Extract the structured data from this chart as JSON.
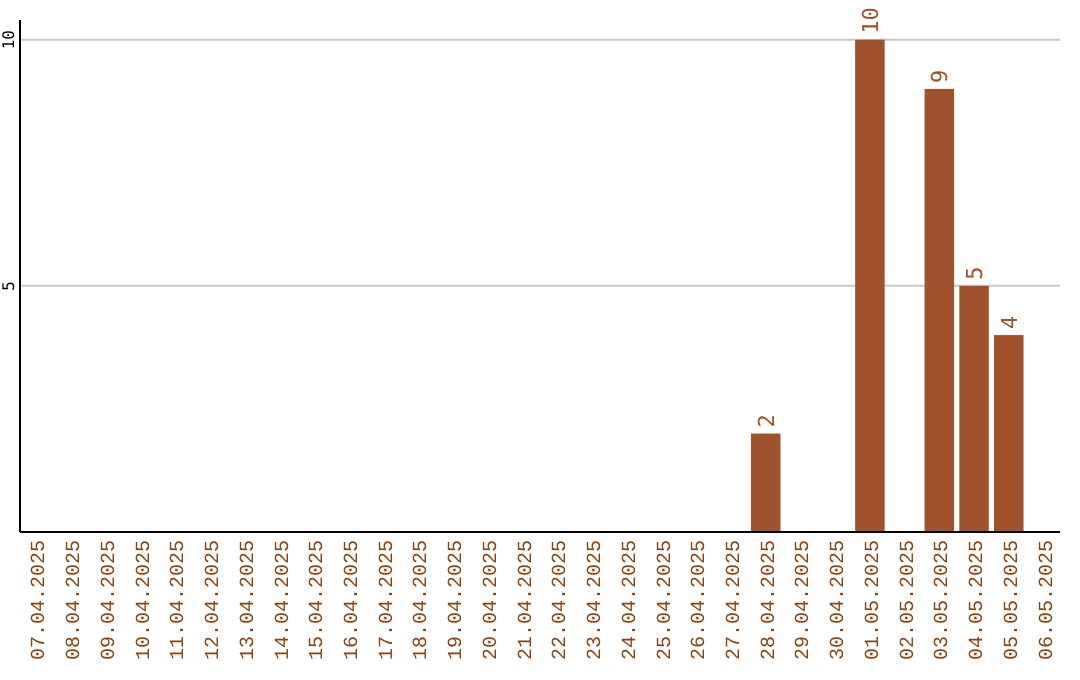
{
  "chart_data": {
    "type": "bar",
    "categories": [
      "07.04.2025",
      "08.04.2025",
      "09.04.2025",
      "10.04.2025",
      "11.04.2025",
      "12.04.2025",
      "13.04.2025",
      "14.04.2025",
      "15.04.2025",
      "16.04.2025",
      "17.04.2025",
      "18.04.2025",
      "19.04.2025",
      "20.04.2025",
      "21.04.2025",
      "22.04.2025",
      "23.04.2025",
      "24.04.2025",
      "25.04.2025",
      "26.04.2025",
      "27.04.2025",
      "28.04.2025",
      "29.04.2025",
      "30.04.2025",
      "01.05.2025",
      "02.05.2025",
      "03.05.2025",
      "04.05.2025",
      "05.05.2025",
      "06.05.2025"
    ],
    "values": [
      null,
      null,
      null,
      null,
      null,
      null,
      null,
      null,
      null,
      null,
      null,
      null,
      null,
      null,
      null,
      null,
      null,
      null,
      null,
      null,
      null,
      2,
      null,
      null,
      10,
      null,
      9,
      5,
      4,
      null
    ],
    "color": "#a0522d",
    "ylim": [
      0,
      10.4
    ],
    "yticks": [
      5,
      10
    ],
    "grid": "y",
    "data_labels": true
  }
}
